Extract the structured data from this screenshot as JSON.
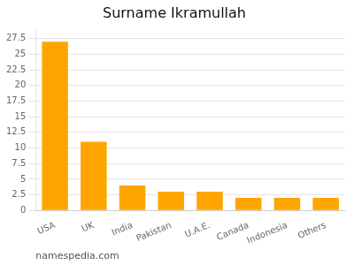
{
  "chart_data": {
    "type": "bar",
    "title": "Surname Ikramullah",
    "categories": [
      "USA",
      "UK",
      "India",
      "Pakistan",
      "U.A.E.",
      "Canada",
      "Indonesia",
      "Others"
    ],
    "values": [
      27,
      11,
      4,
      3,
      3,
      2,
      2,
      2
    ],
    "color": "#FFA500",
    "ylim": [
      0,
      29
    ],
    "yticks": [
      0,
      2.5,
      5,
      7.5,
      10,
      12.5,
      15,
      17.5,
      20,
      22.5,
      25,
      27.5
    ],
    "grid": true,
    "annotations": [
      "namespedia.com"
    ]
  }
}
